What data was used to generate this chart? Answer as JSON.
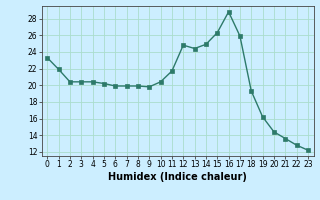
{
  "x": [
    0,
    1,
    2,
    3,
    4,
    5,
    6,
    7,
    8,
    9,
    10,
    11,
    12,
    13,
    14,
    15,
    16,
    17,
    18,
    19,
    20,
    21,
    22,
    23
  ],
  "y": [
    23.3,
    21.9,
    20.4,
    20.4,
    20.4,
    20.2,
    19.9,
    19.9,
    19.9,
    19.8,
    20.4,
    21.7,
    24.8,
    24.4,
    24.9,
    26.3,
    28.8,
    25.9,
    19.3,
    16.2,
    14.4,
    13.6,
    12.8,
    12.2
  ],
  "line_color": "#2d7a6a",
  "marker": "s",
  "marker_size": 2.5,
  "bg_color": "#cceeff",
  "grid_color": "#aaddcc",
  "xlabel": "Humidex (Indice chaleur)",
  "ylim": [
    11.5,
    29.5
  ],
  "xlim": [
    -0.5,
    23.5
  ],
  "yticks": [
    12,
    14,
    16,
    18,
    20,
    22,
    24,
    26,
    28
  ],
  "xticks": [
    0,
    1,
    2,
    3,
    4,
    5,
    6,
    7,
    8,
    9,
    10,
    11,
    12,
    13,
    14,
    15,
    16,
    17,
    18,
    19,
    20,
    21,
    22,
    23
  ],
  "tick_fontsize": 5.5,
  "label_fontsize": 7.0
}
